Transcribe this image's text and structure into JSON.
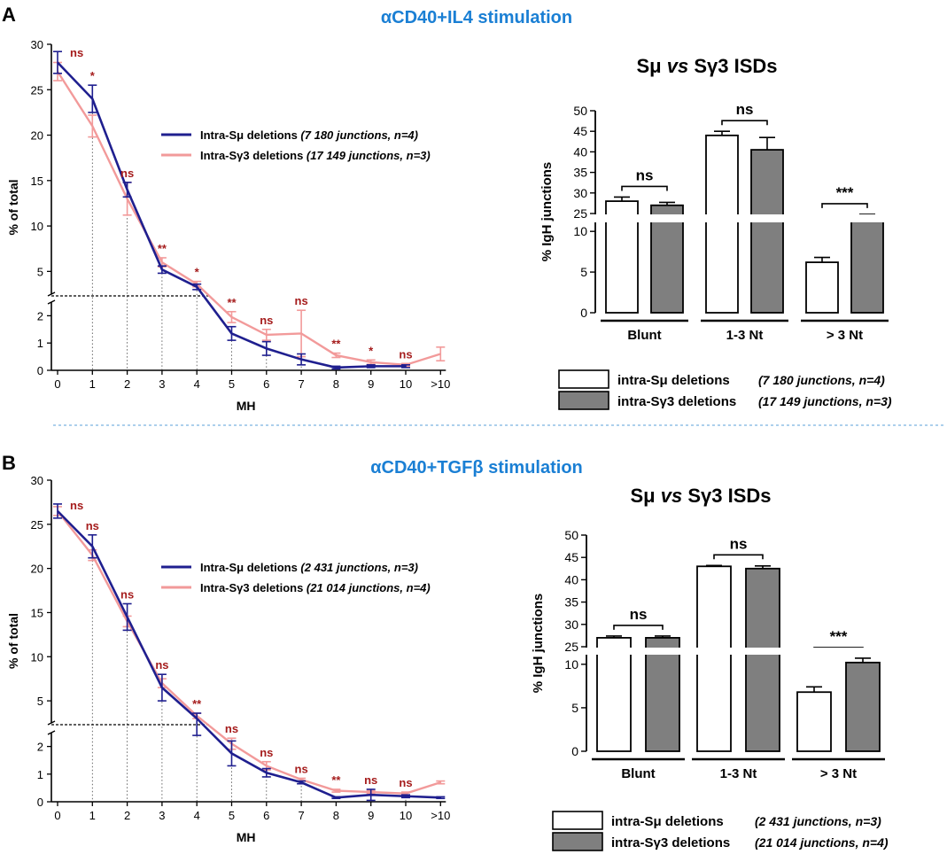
{
  "panels": [
    {
      "letter": "A",
      "title": "αCD40+IL4 stimulation",
      "legend_line": [
        {
          "label": "Intra-Sμ deletions",
          "detail": "(7 180 junctions, n=4)"
        },
        {
          "label": "Intra-Sγ3 deletions",
          "detail": "(17 149 junctions, n=3)"
        }
      ],
      "bar_title": {
        "left": "Sμ",
        "mid": "vs",
        "right": "Sγ3 ISDs"
      },
      "legend_bar": [
        {
          "label": "intra-Sμ deletions",
          "detail": "(7 180 junctions, n=4)"
        },
        {
          "label": "intra-Sγ3 deletions",
          "detail": "(17 149 junctions, n=3)"
        }
      ]
    },
    {
      "letter": "B",
      "title": "αCD40+TGFβ stimulation",
      "legend_line": [
        {
          "label": "Intra-Sμ deletions",
          "detail": "(2 431 junctions, n=3)"
        },
        {
          "label": "Intra-Sγ3 deletions",
          "detail": "(21 014 junctions, n=4)"
        }
      ],
      "bar_title": {
        "left": "Sμ",
        "mid": "vs",
        "right": "Sγ3 ISDs"
      },
      "legend_bar": [
        {
          "label": "intra-Sμ deletions",
          "detail": "(2 431 junctions, n=3)"
        },
        {
          "label": "intra-Sγ3 deletions",
          "detail": "(21 014 junctions, n=4)"
        }
      ]
    }
  ],
  "colors": {
    "smu": "#1f1f8f",
    "sg3": "#f29a9a",
    "title": "#1a7fd4",
    "sig": "#a51c1c",
    "bar_white": "#ffffff",
    "bar_gray": "#7f7f7f",
    "divider": "#5a9fd8"
  },
  "chart_data": [
    {
      "id": "A-line",
      "type": "line",
      "xlabel": "MH",
      "ylabel": "% of total",
      "categories": [
        "0",
        "1",
        "2",
        "3",
        "4",
        "5",
        "6",
        "7",
        "8",
        "9",
        "10",
        ">10"
      ],
      "ylim_upper": [
        2.5,
        30
      ],
      "ylim_lower": [
        0,
        2.5
      ],
      "upper_ticks": [
        "5",
        "10",
        "15",
        "20",
        "25",
        "30"
      ],
      "lower_ticks": [
        "0",
        "1",
        "2"
      ],
      "series": [
        {
          "name": "Intra-Sμ deletions",
          "values": [
            28.0,
            24.0,
            14.0,
            5.2,
            3.3,
            1.35,
            0.8,
            0.4,
            0.1,
            0.15,
            0.15,
            null
          ],
          "errors": [
            1.2,
            1.5,
            0.8,
            0.4,
            0.3,
            0.25,
            0.25,
            0.2,
            0.05,
            0.05,
            0.05,
            null
          ]
        },
        {
          "name": "Intra-Sγ3 deletions",
          "values": [
            27.0,
            21.0,
            13.0,
            6.0,
            3.6,
            1.95,
            1.3,
            1.35,
            0.55,
            0.3,
            0.2,
            0.6
          ],
          "errors": [
            1.0,
            1.2,
            1.8,
            0.5,
            0.3,
            0.2,
            0.2,
            0.85,
            0.08,
            0.08,
            0.05,
            0.25
          ]
        }
      ],
      "significance": [
        "ns",
        "*",
        "ns",
        "**",
        "*",
        "**",
        "ns",
        "ns",
        "**",
        "*",
        "ns",
        ""
      ]
    },
    {
      "id": "A-bar",
      "type": "bar",
      "ylabel": "% IgH junctions",
      "categories": [
        "Blunt",
        "1-3 Nt",
        "> 3 Nt"
      ],
      "series": [
        {
          "name": "intra-Sμ deletions",
          "values": [
            28.0,
            44.0,
            6.2
          ],
          "errors": [
            1.0,
            1.0,
            0.6
          ]
        },
        {
          "name": "intra-Sγ3 deletions",
          "values": [
            27.0,
            40.5,
            11.2
          ],
          "errors": [
            0.7,
            3.0,
            0.9
          ]
        }
      ],
      "ylim_lower": [
        0,
        11
      ],
      "ylim_upper": [
        25,
        50
      ],
      "lower_ticks": [
        "0",
        "5",
        "10"
      ],
      "upper_ticks": [
        "25",
        "30",
        "35",
        "40",
        "45",
        "50"
      ],
      "significance": [
        "ns",
        "ns",
        "***"
      ]
    },
    {
      "id": "B-line",
      "type": "line",
      "xlabel": "MH",
      "ylabel": "% of total",
      "categories": [
        "0",
        "1",
        "2",
        "3",
        "4",
        "5",
        "6",
        "7",
        "8",
        "9",
        "10",
        ">10"
      ],
      "ylim_upper": [
        2.5,
        30
      ],
      "ylim_lower": [
        0,
        2.5
      ],
      "upper_ticks": [
        "5",
        "10",
        "15",
        "20",
        "25",
        "30"
      ],
      "lower_ticks": [
        "0",
        "1",
        "2"
      ],
      "series": [
        {
          "name": "Intra-Sμ deletions",
          "values": [
            26.5,
            22.5,
            14.5,
            6.5,
            3.0,
            1.75,
            1.05,
            0.7,
            0.15,
            0.25,
            0.2,
            0.15
          ],
          "errors": [
            0.8,
            1.3,
            1.5,
            1.5,
            0.6,
            0.45,
            0.15,
            0.05,
            0.03,
            0.2,
            0.05,
            0.03
          ]
        },
        {
          "name": "Intra-Sγ3 deletions",
          "values": [
            26.5,
            21.5,
            14.0,
            7.0,
            3.3,
            2.1,
            1.3,
            0.8,
            0.4,
            0.35,
            0.3,
            0.7
          ],
          "errors": [
            0.5,
            0.6,
            0.6,
            0.5,
            0.3,
            0.2,
            0.15,
            0.05,
            0.05,
            0.05,
            0.05,
            0.05
          ]
        }
      ],
      "significance": [
        "ns",
        "ns",
        "ns",
        "ns",
        "**",
        "ns",
        "ns",
        "ns",
        "**",
        "ns",
        "ns",
        ""
      ]
    },
    {
      "id": "B-bar",
      "type": "bar",
      "ylabel": "% IgH junctions",
      "categories": [
        "Blunt",
        "1-3 Nt",
        "> 3 Nt"
      ],
      "series": [
        {
          "name": "intra-Sμ deletions",
          "values": [
            27.0,
            43.0,
            6.8
          ],
          "errors": [
            0.4,
            0.2,
            0.6
          ]
        },
        {
          "name": "intra-Sγ3 deletions",
          "values": [
            27.0,
            42.5,
            10.2
          ],
          "errors": [
            0.4,
            0.6,
            0.5
          ]
        }
      ],
      "ylim_lower": [
        0,
        11
      ],
      "ylim_upper": [
        25,
        50
      ],
      "lower_ticks": [
        "0",
        "5",
        "10"
      ],
      "upper_ticks": [
        "25",
        "30",
        "35",
        "40",
        "45",
        "50"
      ],
      "significance": [
        "ns",
        "ns",
        "***"
      ]
    }
  ]
}
